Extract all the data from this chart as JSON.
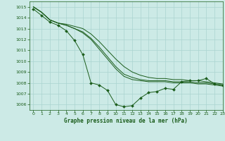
{
  "title": "Graphe pression niveau de la mer (hPa)",
  "background_color": "#cceae6",
  "grid_color": "#aad4d0",
  "line_color": "#1a5c1a",
  "marker_color": "#1a5c1a",
  "xlim": [
    -0.5,
    23
  ],
  "ylim": [
    1005.5,
    1015.5
  ],
  "yticks": [
    1006,
    1007,
    1008,
    1009,
    1010,
    1011,
    1012,
    1013,
    1014,
    1015
  ],
  "xticks": [
    0,
    1,
    2,
    3,
    4,
    5,
    6,
    7,
    8,
    9,
    10,
    11,
    12,
    13,
    14,
    15,
    16,
    17,
    18,
    19,
    20,
    21,
    22,
    23
  ],
  "series_markers": {
    "x": [
      0,
      1,
      2,
      3,
      4,
      5,
      6,
      7,
      8,
      9,
      10,
      11,
      12,
      13,
      14,
      15,
      16,
      17,
      18,
      19,
      20,
      21,
      22,
      23
    ],
    "y": [
      1014.8,
      1014.2,
      1013.6,
      1013.3,
      1012.8,
      1011.9,
      1010.6,
      1008.0,
      1007.8,
      1007.3,
      1006.0,
      1005.8,
      1005.9,
      1006.6,
      1007.1,
      1007.2,
      1007.5,
      1007.4,
      1008.1,
      1008.2,
      1008.2,
      1008.4,
      1007.9,
      1007.8
    ]
  },
  "series_lines": [
    {
      "x": [
        0,
        1,
        2,
        3,
        4,
        5,
        6,
        7,
        8,
        9,
        10,
        11,
        12,
        13,
        14,
        15,
        16,
        17,
        18,
        19,
        20,
        21,
        22,
        23
      ],
      "y": [
        1015.0,
        1014.5,
        1013.8,
        1013.5,
        1013.4,
        1013.2,
        1013.0,
        1012.5,
        1011.8,
        1011.0,
        1010.2,
        1009.5,
        1009.0,
        1008.7,
        1008.5,
        1008.4,
        1008.4,
        1008.3,
        1008.3,
        1008.2,
        1008.2,
        1008.1,
        1008.0,
        1007.9
      ]
    },
    {
      "x": [
        0,
        1,
        2,
        3,
        4,
        5,
        6,
        7,
        8,
        9,
        10,
        11,
        12,
        13,
        14,
        15,
        16,
        17,
        18,
        19,
        20,
        21,
        22,
        23
      ],
      "y": [
        1015.0,
        1014.5,
        1013.8,
        1013.5,
        1013.3,
        1013.0,
        1012.7,
        1012.1,
        1011.3,
        1010.4,
        1009.5,
        1008.8,
        1008.5,
        1008.3,
        1008.2,
        1008.2,
        1008.2,
        1008.1,
        1008.1,
        1008.1,
        1008.0,
        1008.0,
        1007.9,
        1007.8
      ]
    },
    {
      "x": [
        0,
        1,
        2,
        3,
        4,
        5,
        6,
        7,
        8,
        9,
        10,
        11,
        12,
        13,
        14,
        15,
        16,
        17,
        18,
        19,
        20,
        21,
        22,
        23
      ],
      "y": [
        1015.0,
        1014.5,
        1013.8,
        1013.5,
        1013.3,
        1013.0,
        1012.6,
        1012.0,
        1011.1,
        1010.2,
        1009.3,
        1008.6,
        1008.3,
        1008.2,
        1008.1,
        1008.1,
        1008.1,
        1008.0,
        1008.0,
        1008.0,
        1007.9,
        1007.9,
        1007.8,
        1007.7
      ]
    }
  ]
}
